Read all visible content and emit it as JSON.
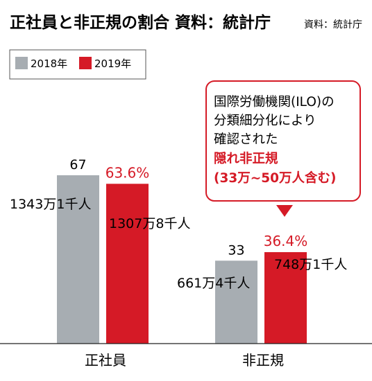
{
  "title": "正社員と非正規の割合 資料：統計庁",
  "source": "資料：統計庁",
  "legend": [
    {
      "label": "2018年",
      "color": "#a7adb2"
    },
    {
      "label": "2019年",
      "color": "#d51a26"
    }
  ],
  "chart_data": {
    "type": "bar",
    "categories": [
      "正社員",
      "非正規"
    ],
    "series": [
      {
        "name": "2018年",
        "values": [
          67,
          33
        ],
        "value_labels": [
          "67",
          "33"
        ],
        "count_labels": [
          "1343万1千人",
          "661万4千人"
        ],
        "color": "#a7adb2"
      },
      {
        "name": "2019年",
        "values": [
          63.6,
          36.4
        ],
        "value_labels": [
          "63.6%",
          "36.4%"
        ],
        "count_labels": [
          "1307万8千人",
          "748万1千人"
        ],
        "color": "#d51a26"
      }
    ],
    "ylim": [
      0,
      100
    ],
    "legend_position": "top-left",
    "grid": false
  },
  "callout": {
    "lines": [
      "国際労働機関(ILO)の",
      "分類細分化により",
      "確認された"
    ],
    "highlight": [
      "隠れ非正規",
      "(33万~50万人含む)"
    ],
    "accent": "#d51a26"
  }
}
